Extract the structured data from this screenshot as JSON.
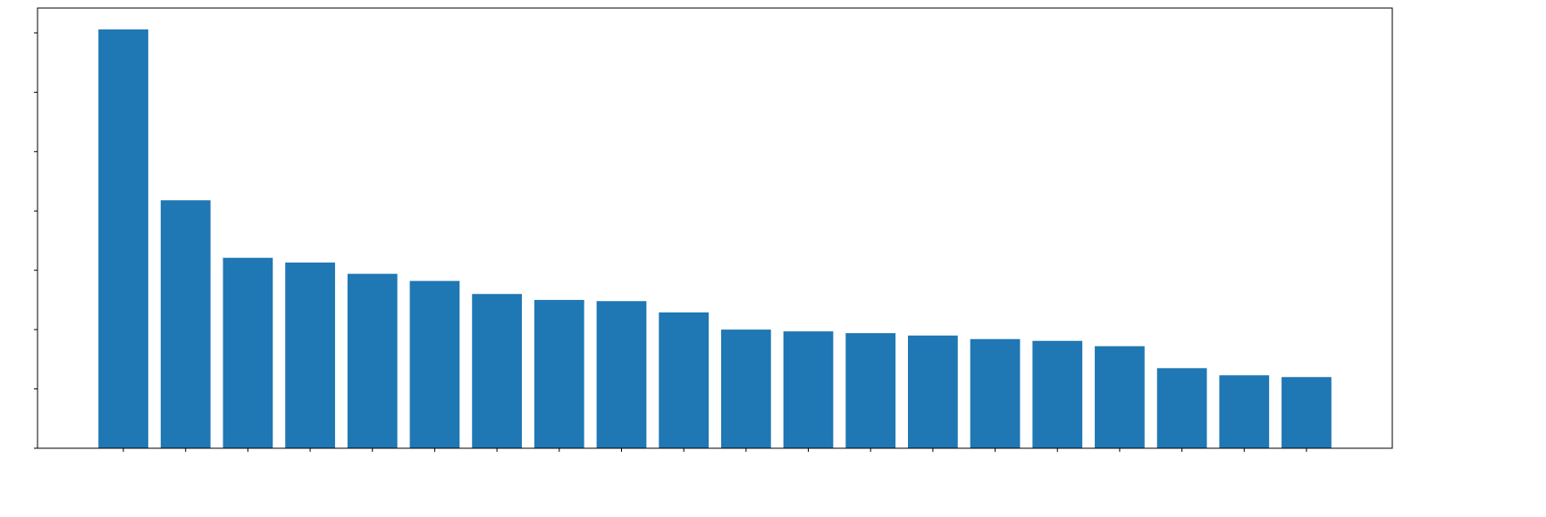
{
  "chart_data": {
    "type": "bar",
    "categories": [
      null,
      null,
      null,
      null,
      null,
      null,
      null,
      null,
      null,
      null,
      null,
      null,
      null,
      null,
      null,
      null,
      null,
      null,
      null,
      null
    ],
    "values": [
      7.06,
      4.18,
      3.21,
      3.13,
      2.94,
      2.82,
      2.6,
      2.5,
      2.48,
      2.29,
      2.0,
      1.97,
      1.94,
      1.9,
      1.84,
      1.81,
      1.72,
      1.35,
      1.23,
      1.2
    ],
    "color": "#1f77b4",
    "ylim": [
      0,
      7.42
    ],
    "yticks": [
      0,
      1,
      2,
      3,
      4,
      5,
      6,
      7
    ],
    "grid": false
  }
}
